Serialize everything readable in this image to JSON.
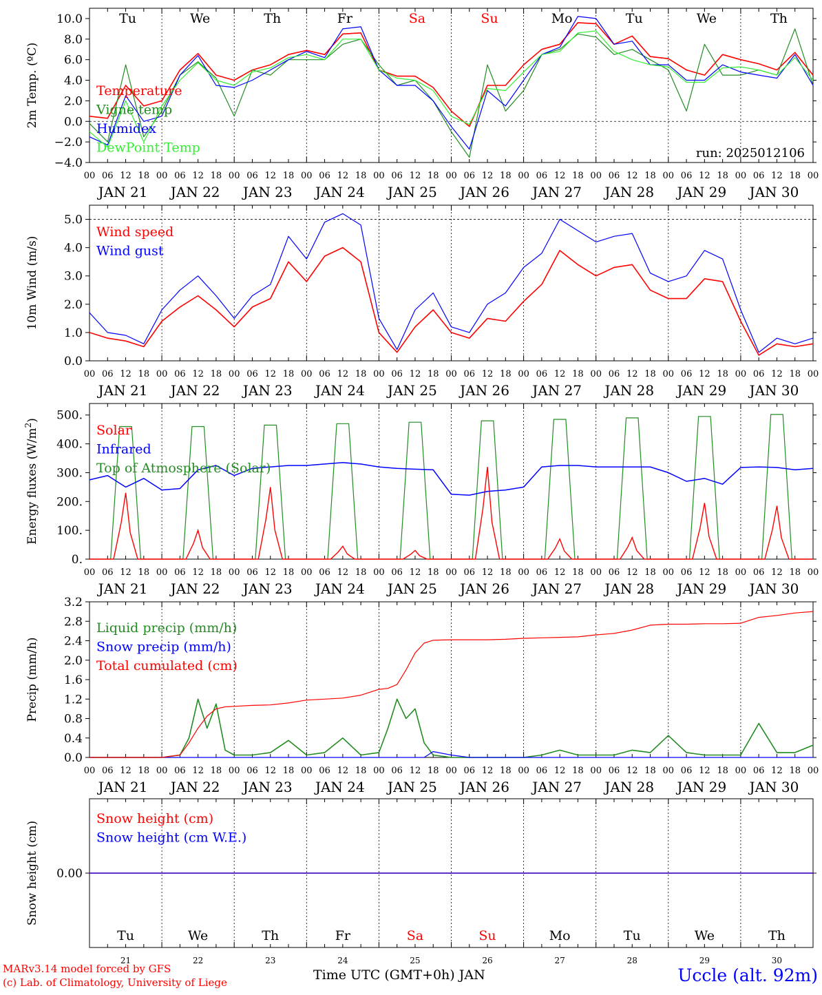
{
  "colors": {
    "red": "#ff0000",
    "green": "#228b22",
    "blue": "#0000ff",
    "light_green": "#33ee33",
    "weekend": "#ff0000",
    "axis": "#000000"
  },
  "chart_data": [
    {
      "id": "temperature",
      "type": "line",
      "ylabel": "2m Temp. (ºC)",
      "ylim": [
        -4,
        11
      ],
      "yticks": [
        "10.0",
        "8.0",
        "6.0",
        "4.0",
        "2.0",
        "0.0",
        "−2.0",
        "−4.0"
      ],
      "ytick_values": [
        10,
        8,
        6,
        4,
        2,
        0,
        -2,
        -4
      ],
      "dashed_hlines": [
        0
      ],
      "annotation": "run: 2025012106",
      "x_hours": [
        0,
        6,
        12,
        18,
        24,
        30,
        36,
        42,
        48,
        54,
        60,
        66,
        72,
        78,
        84,
        90,
        96,
        102,
        108,
        114,
        120,
        126,
        132,
        138,
        144,
        150,
        156,
        162,
        168,
        174,
        180,
        186,
        192,
        198,
        204,
        210,
        216,
        222,
        228,
        234,
        240
      ],
      "series": [
        {
          "name": "Temperature",
          "color": "#ff0000",
          "values": [
            0.5,
            0.3,
            3.5,
            1.5,
            2.0,
            5.0,
            6.6,
            4.5,
            4.0,
            5.0,
            5.5,
            6.5,
            6.9,
            6.5,
            8.5,
            8.6,
            5.0,
            4.4,
            4.4,
            3.3,
            1.0,
            -0.5,
            3.5,
            3.5,
            5.5,
            7.0,
            7.5,
            9.6,
            9.5,
            7.5,
            8.3,
            6.3,
            6.1,
            5.0,
            4.5,
            6.5,
            6.0,
            5.6,
            5.0,
            6.7,
            4.5
          ]
        },
        {
          "name": "Vigne temp",
          "color": "#228b22",
          "values": [
            -0.2,
            -2.0,
            5.5,
            -1.5,
            1.0,
            4.5,
            5.8,
            4.2,
            0.5,
            5.0,
            4.5,
            6.0,
            6.0,
            6.0,
            7.5,
            8.0,
            5.5,
            3.5,
            4.0,
            2.0,
            -1.0,
            -3.5,
            5.5,
            1.0,
            3.0,
            6.5,
            7.0,
            8.5,
            8.2,
            6.5,
            7.0,
            6.0,
            5.0,
            1.0,
            7.5,
            4.5,
            4.5,
            5.0,
            4.5,
            9.0,
            3.5
          ]
        },
        {
          "name": "Humidex",
          "color": "#0000ff",
          "values": [
            -1.5,
            -2.3,
            2.5,
            0.0,
            0.5,
            4.5,
            6.4,
            3.5,
            3.3,
            4.0,
            5.0,
            6.0,
            6.8,
            6.2,
            9.0,
            9.2,
            5.0,
            3.5,
            3.5,
            2.0,
            -0.5,
            -2.7,
            3.0,
            1.5,
            4.0,
            6.5,
            7.2,
            10.2,
            10.0,
            7.5,
            7.8,
            5.5,
            5.5,
            4.0,
            4.0,
            5.5,
            4.8,
            4.5,
            4.2,
            6.5,
            3.5
          ]
        },
        {
          "name": "DewPoint Temp",
          "color": "#33ee33",
          "values": [
            -1.0,
            -2.5,
            2.0,
            -2.0,
            1.5,
            4.0,
            5.7,
            4.0,
            3.5,
            4.8,
            5.2,
            6.2,
            6.5,
            6.0,
            8.0,
            8.0,
            5.0,
            4.2,
            4.0,
            3.0,
            0.5,
            -0.3,
            3.2,
            3.0,
            4.8,
            6.5,
            6.8,
            8.6,
            8.8,
            6.8,
            6.0,
            5.5,
            5.3,
            3.8,
            3.8,
            5.2,
            5.3,
            5.0,
            4.5,
            6.2,
            4.0
          ]
        }
      ]
    },
    {
      "id": "wind",
      "type": "line",
      "ylabel": "10m Wind (m/s)",
      "ylim": [
        0,
        5.5
      ],
      "yticks": [
        "5.0",
        "4.0",
        "3.0",
        "2.0",
        "1.0",
        "0.0"
      ],
      "ytick_values": [
        5,
        4,
        3,
        2,
        1,
        0
      ],
      "dashed_hlines": [
        5
      ],
      "x_hours": [
        0,
        6,
        12,
        18,
        24,
        30,
        36,
        42,
        48,
        54,
        60,
        66,
        72,
        78,
        84,
        90,
        96,
        102,
        108,
        114,
        120,
        126,
        132,
        138,
        144,
        150,
        156,
        162,
        168,
        174,
        180,
        186,
        192,
        198,
        204,
        210,
        216,
        222,
        228,
        234,
        240
      ],
      "series": [
        {
          "name": "Wind speed",
          "color": "#ff0000",
          "values": [
            1.0,
            0.8,
            0.7,
            0.5,
            1.4,
            1.9,
            2.3,
            1.8,
            1.2,
            1.9,
            2.2,
            3.5,
            2.8,
            3.7,
            4.0,
            3.5,
            1.0,
            0.3,
            1.2,
            1.8,
            1.0,
            0.8,
            1.5,
            1.4,
            2.1,
            2.7,
            3.9,
            3.4,
            3.0,
            3.3,
            3.4,
            2.5,
            2.2,
            2.2,
            2.9,
            2.8,
            1.4,
            0.2,
            0.6,
            0.5,
            0.6
          ]
        },
        {
          "name": "Wind gust",
          "color": "#0000ff",
          "values": [
            1.7,
            1.0,
            0.9,
            0.6,
            1.8,
            2.5,
            3.0,
            2.3,
            1.5,
            2.3,
            2.7,
            4.4,
            3.6,
            4.9,
            5.2,
            4.8,
            1.5,
            0.4,
            1.8,
            2.4,
            1.2,
            1.0,
            2.0,
            2.4,
            3.3,
            3.8,
            5.0,
            4.6,
            4.2,
            4.4,
            4.5,
            3.1,
            2.8,
            3.0,
            3.9,
            3.6,
            1.8,
            0.3,
            0.8,
            0.6,
            0.8
          ]
        }
      ]
    },
    {
      "id": "energy",
      "type": "line",
      "ylabel": "Energy fluxes (W/m²)",
      "ylim": [
        0,
        540
      ],
      "yticks": [
        "500.",
        "400.",
        "300.",
        "200.",
        "100.",
        "0."
      ],
      "ytick_values": [
        500,
        400,
        300,
        200,
        100,
        0
      ],
      "dashed_hlines": [],
      "daily_peaks": {
        "toa": [
          460,
          460,
          465,
          470,
          475,
          480,
          485,
          490,
          495,
          502
        ],
        "solar": [
          230,
          100,
          250,
          45,
          30,
          320,
          70,
          75,
          195,
          185
        ]
      },
      "infrared": {
        "x_hours": [
          0,
          6,
          12,
          18,
          24,
          30,
          36,
          42,
          48,
          54,
          60,
          66,
          72,
          78,
          84,
          90,
          96,
          102,
          108,
          114,
          120,
          126,
          132,
          138,
          144,
          150,
          156,
          162,
          168,
          174,
          180,
          186,
          192,
          198,
          204,
          210,
          216,
          222,
          228,
          234,
          240
        ],
        "values": [
          275,
          290,
          250,
          280,
          240,
          245,
          310,
          325,
          290,
          315,
          320,
          325,
          325,
          330,
          335,
          330,
          320,
          315,
          312,
          310,
          225,
          222,
          235,
          240,
          250,
          320,
          325,
          325,
          320,
          320,
          320,
          320,
          300,
          270,
          280,
          260,
          318,
          320,
          318,
          310,
          315
        ]
      },
      "series": [
        {
          "name": "Solar",
          "color": "#ff0000"
        },
        {
          "name": "Infrared",
          "color": "#0000ff"
        },
        {
          "name": "Top of Atmosphere (Solar)",
          "color": "#228b22"
        }
      ]
    },
    {
      "id": "precip",
      "type": "line",
      "ylabel": "Precip (mm/h)",
      "ylim": [
        0,
        3.2
      ],
      "yticks": [
        "3.2",
        "2.8",
        "2.4",
        "2.0",
        "1.6",
        "1.2",
        "0.8",
        "0.4",
        "0.0"
      ],
      "ytick_values": [
        3.2,
        2.8,
        2.4,
        2.0,
        1.6,
        1.2,
        0.8,
        0.4,
        0.0
      ],
      "dashed_hlines": [],
      "x_hours": [
        0,
        6,
        12,
        18,
        24,
        30,
        33,
        36,
        39,
        42,
        45,
        48,
        54,
        60,
        66,
        72,
        78,
        84,
        90,
        96,
        99,
        102,
        105,
        108,
        111,
        114,
        120,
        126,
        132,
        138,
        144,
        150,
        156,
        162,
        168,
        174,
        180,
        186,
        192,
        198,
        204,
        210,
        216,
        222,
        228,
        234,
        240
      ],
      "series": [
        {
          "name": "Liquid precip (mm/h)",
          "color": "#228b22",
          "values": [
            0,
            0,
            0,
            0,
            0,
            0.05,
            0.4,
            1.2,
            0.6,
            1.1,
            0.15,
            0.05,
            0.05,
            0.1,
            0.35,
            0.05,
            0.1,
            0.4,
            0.05,
            0.1,
            0.6,
            1.2,
            0.8,
            1.0,
            0.3,
            0.05,
            0,
            0,
            0,
            0,
            0,
            0.05,
            0.15,
            0.05,
            0.05,
            0.05,
            0.15,
            0.1,
            0.45,
            0.1,
            0.05,
            0.05,
            0.05,
            0.7,
            0.1,
            0.1,
            0.25
          ]
        },
        {
          "name": "Snow precip (mm/h)",
          "color": "#0000ff",
          "values": [
            0,
            0,
            0,
            0,
            0,
            0,
            0,
            0,
            0,
            0,
            0,
            0,
            0,
            0,
            0,
            0,
            0,
            0,
            0,
            0,
            0,
            0,
            0,
            0,
            0,
            0.12,
            0.05,
            0,
            0,
            0,
            0,
            0,
            0,
            0,
            0,
            0,
            0,
            0,
            0,
            0,
            0,
            0,
            0,
            0,
            0,
            0,
            0
          ]
        },
        {
          "name": "Total cumulated (cm)",
          "color": "#ff0000",
          "values": [
            0,
            0,
            0,
            0,
            0,
            0.05,
            0.3,
            0.6,
            0.85,
            1.0,
            1.04,
            1.05,
            1.07,
            1.08,
            1.12,
            1.18,
            1.2,
            1.22,
            1.28,
            1.4,
            1.42,
            1.5,
            1.8,
            2.15,
            2.35,
            2.41,
            2.42,
            2.42,
            2.42,
            2.43,
            2.45,
            2.46,
            2.47,
            2.48,
            2.52,
            2.55,
            2.62,
            2.72,
            2.74,
            2.74,
            2.75,
            2.75,
            2.76,
            2.88,
            2.92,
            2.97,
            3.0
          ]
        }
      ]
    },
    {
      "id": "snow",
      "type": "line",
      "ylabel": "Snow height (cm)",
      "ylim": [
        -1,
        1
      ],
      "yticks": [
        "0.00"
      ],
      "ytick_values": [
        0
      ],
      "dashed_hlines": [],
      "x_hours": [
        0,
        240
      ],
      "series": [
        {
          "name": "Snow height (cm)",
          "color": "#ff0000",
          "values": [
            0,
            0
          ]
        },
        {
          "name": "Snow height (cm W.E.)",
          "color": "#0000ff",
          "values": [
            0,
            0
          ]
        }
      ]
    }
  ],
  "x_axis": {
    "hour_labels": [
      "00",
      "06",
      "12",
      "18"
    ],
    "dates": [
      "JAN 21",
      "JAN 22",
      "JAN 23",
      "JAN 24",
      "JAN 25",
      "JAN 26",
      "JAN 27",
      "JAN 28",
      "JAN 29",
      "JAN 30"
    ],
    "weekdays": [
      "Tu",
      "We",
      "Th",
      "Fr",
      "Sa",
      "Su",
      "Mo",
      "Tu",
      "We",
      "Th"
    ],
    "weekend_flags": [
      false,
      false,
      false,
      false,
      true,
      true,
      false,
      false,
      false,
      false
    ],
    "day_numbers": [
      "21",
      "22",
      "23",
      "24",
      "25",
      "26",
      "27",
      "28",
      "29",
      "30"
    ]
  },
  "footer": {
    "credit_line1": "MARv3.14 model forced by GFS",
    "credit_line2": "(c) Lab. of Climatology, University of Liege",
    "xlabel": "Time UTC (GMT+0h) JAN",
    "station": "Uccle (alt. 92m)"
  }
}
